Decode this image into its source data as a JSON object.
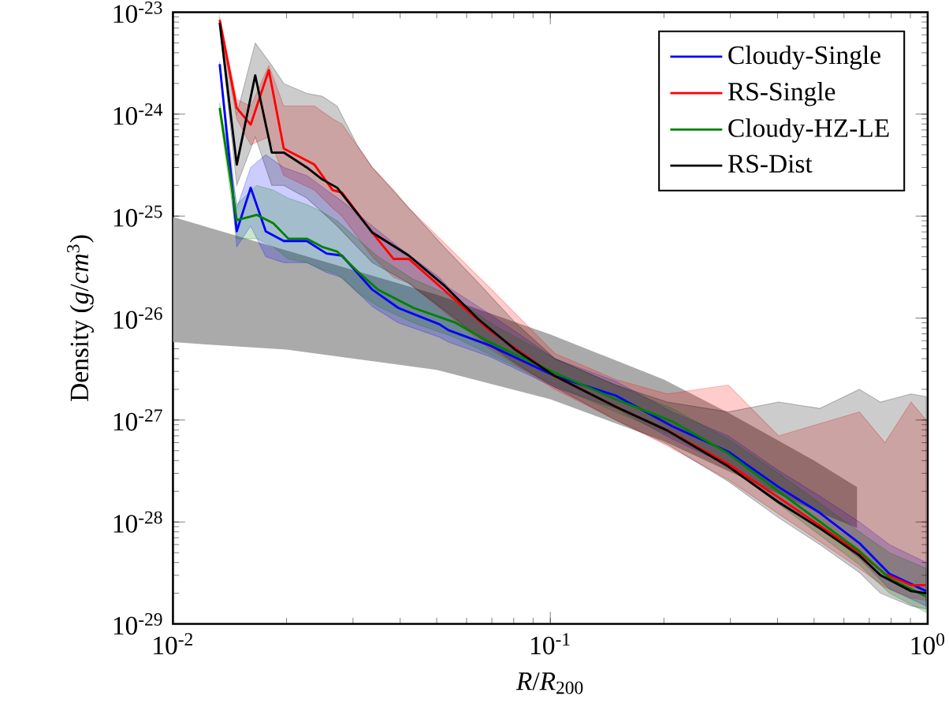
{
  "chart_data": {
    "type": "line",
    "xlabel": "*R*/*R*$_{200}$",
    "ylabel": "Density (*g*/*cm*$^{3}$)",
    "log": "xy",
    "xlim": [
      0.01,
      1
    ],
    "ylim": [
      1e-29,
      1e-23
    ],
    "xticks": [
      {
        "value": 0.01,
        "label": "10$^{-2}$"
      },
      {
        "value": 0.1,
        "label": "10$^{-1}$"
      },
      {
        "value": 1,
        "label": "10$^{0}$"
      }
    ],
    "yticks": [
      {
        "value": 1e-29,
        "label": "10$^{-29}$"
      },
      {
        "value": 1e-28,
        "label": "10$^{-28}$"
      },
      {
        "value": 1e-27,
        "label": "10$^{-27}$"
      },
      {
        "value": 1e-26,
        "label": "10$^{-26}$"
      },
      {
        "value": 1e-25,
        "label": "10$^{-25}$"
      },
      {
        "value": 1e-24,
        "label": "10$^{-24}$"
      },
      {
        "value": 1e-23,
        "label": "10$^{-23}$"
      }
    ],
    "legend": "top right",
    "series": [
      {
        "type": "area",
        "color": "#aaaaaa",
        "x": [
          0.01,
          0.02,
          0.05,
          0.1,
          0.2,
          0.3,
          0.5,
          0.65
        ],
        "values": [
          null,
          null,
          null,
          null,
          null,
          null,
          null,
          null
        ],
        "upper": [
          9.8e-26,
          4.6e-26,
          1.7e-26,
          6.9e-27,
          2.5e-27,
          1.15e-27,
          4e-28,
          2.2e-28
        ],
        "lower": [
          5.8e-27,
          4.9e-27,
          3.1e-27,
          1.6e-27,
          6.2e-28,
          3.1e-28,
          1.3e-28,
          8.7e-29
        ]
      },
      {
        "name": "Cloudy-Single",
        "color": "#0000ff",
        "x": [
          0.0133,
          0.01476,
          0.01607,
          0.01762,
          0.01967,
          0.02263,
          0.02553,
          0.02805,
          0.03375,
          0.03953,
          0.05082,
          0.05373,
          0.069,
          0.1028,
          0.149,
          0.2104,
          0.2963,
          0.4027,
          0.5176,
          0.6592,
          0.7925,
          0.9908
        ],
        "values": [
          3.1e-24,
          7.1e-26,
          1.9e-25,
          7.1e-26,
          5.7e-26,
          5.7e-26,
          4.3e-26,
          4.1e-26,
          1.9e-26,
          1.26e-26,
          8.7e-27,
          7.6e-27,
          5.4e-27,
          2.7e-27,
          1.74e-27,
          8.7e-28,
          4.9e-28,
          2.2e-28,
          1.23e-28,
          6.2e-29,
          3.1e-29,
          2.1e-29
        ],
        "upper": [
          3.3e-24,
          1.2e-25,
          3e-25,
          4e-25,
          3e-25,
          2.5e-25,
          1.8e-25,
          1.4e-25,
          8e-26,
          5e-26,
          2.5e-26,
          2e-26,
          1.1e-26,
          4e-27,
          2.4e-27,
          1.2e-27,
          7e-28,
          3.2e-28,
          1.8e-28,
          1e-28,
          6e-29,
          4e-29
        ],
        "lower": [
          2.9e-24,
          5e-26,
          8e-26,
          4e-26,
          3.5e-26,
          3.5e-26,
          2.8e-26,
          2.5e-26,
          1.3e-26,
          9e-27,
          6.5e-27,
          5.8e-27,
          4.2e-27,
          2.1e-27,
          1.3e-27,
          6.5e-28,
          3.6e-28,
          1.6e-28,
          9e-29,
          4.4e-29,
          2.2e-29,
          1.5e-29
        ]
      },
      {
        "name": "RS-Single",
        "color": "#ff0000",
        "x": [
          0.0133,
          0.01476,
          0.01607,
          0.01795,
          0.01967,
          0.02371,
          0.02649,
          0.02805,
          0.03375,
          0.03846,
          0.04217,
          0.069,
          0.1028,
          0.149,
          0.2042,
          0.2963,
          0.4027,
          0.6592,
          0.7706,
          0.9036,
          0.9908
        ],
        "values": [
          8.4e-24,
          1.15e-24,
          7.9e-25,
          2.7e-24,
          4.6e-25,
          3.2e-25,
          1.8e-25,
          1.7e-25,
          6.9e-26,
          3.8e-26,
          3.8e-26,
          7.6e-27,
          2.7e-27,
          1.35e-27,
          7.9e-28,
          3.7e-28,
          1.74e-28,
          5e-29,
          3.1e-29,
          2.4e-29,
          2.4e-29
        ],
        "upper": [
          9e-24,
          1.4e-24,
          1.2e-24,
          3e-24,
          1.2e-24,
          1.2e-24,
          9e-25,
          8e-25,
          3e-25,
          1.8e-25,
          1.2e-25,
          2e-26,
          4.5e-27,
          2.5e-27,
          1.8e-27,
          2.2e-27,
          7e-28,
          1.2e-27,
          6e-28,
          1.5e-27,
          1e-27
        ],
        "lower": [
          7.5e-24,
          9e-25,
          5e-25,
          6e-25,
          2.5e-25,
          1.8e-25,
          1.2e-25,
          1e-25,
          4e-26,
          2.5e-26,
          2.2e-26,
          5e-27,
          2e-27,
          1e-27,
          5.6e-28,
          2.6e-28,
          1.2e-28,
          3.5e-29,
          2.3e-29,
          1.8e-29,
          1.7e-29
        ]
      },
      {
        "name": "Cloudy-HZ-LE",
        "color": "#008000",
        "x": [
          0.0133,
          0.01476,
          0.01667,
          0.01845,
          0.02023,
          0.02263,
          0.02483,
          0.02723,
          0.03076,
          0.03497,
          0.04335,
          0.05572,
          0.069,
          0.1028,
          0.149,
          0.2104,
          0.2963,
          0.4027,
          0.6592,
          0.7925,
          0.9908
        ],
        "values": [
          1.15e-24,
          9.1e-26,
          1.03e-25,
          8.5e-26,
          6e-26,
          6e-26,
          5e-26,
          4.5e-26,
          2.9e-26,
          1.9e-26,
          1.26e-26,
          9.1e-27,
          5.8e-27,
          2.9e-27,
          1.6e-27,
          9.7e-28,
          4.7e-28,
          2e-28,
          5.2e-29,
          2.8e-29,
          1.86e-29
        ],
        "upper": [
          1.3e-24,
          1.3e-25,
          2e-25,
          1.8e-25,
          1.5e-25,
          1.3e-25,
          1.1e-25,
          9e-26,
          6e-26,
          4e-26,
          2.4e-26,
          1.6e-26,
          9e-27,
          4e-27,
          2.2e-27,
          1.3e-27,
          6.5e-28,
          3e-28,
          8e-29,
          5e-29,
          3.5e-29
        ],
        "lower": [
          1e-24,
          6e-26,
          6e-26,
          5e-26,
          3.8e-26,
          3.5e-26,
          3e-26,
          2.7e-26,
          1.8e-26,
          1.3e-26,
          9e-27,
          6.5e-27,
          4.4e-27,
          2.2e-27,
          1.2e-27,
          7e-28,
          3.5e-28,
          1.5e-28,
          3.8e-29,
          2e-29,
          1.3e-29
        ]
      },
      {
        "name": "RS-Dist",
        "color": "#000000",
        "x": [
          0.0133,
          0.01476,
          0.01652,
          0.01828,
          0.01967,
          0.02263,
          0.02483,
          0.02723,
          0.03076,
          0.03375,
          0.04217,
          0.05224,
          0.06457,
          0.08072,
          0.1028,
          0.149,
          0.2042,
          0.2963,
          0.4027,
          0.5176,
          0.6592,
          0.75,
          0.9036,
          0.9908
        ],
        "values": [
          7.9e-24,
          3.2e-25,
          2.4e-24,
          4.2e-25,
          4.2e-25,
          3e-25,
          2.3e-25,
          1.9e-25,
          1.07e-25,
          6.9e-26,
          4.1e-26,
          2.1e-26,
          9.7e-27,
          4.9e-27,
          2.7e-27,
          1.35e-27,
          7.9e-28,
          3.5e-28,
          1.56e-28,
          8.7e-29,
          4.7e-29,
          3e-29,
          2.1e-29,
          2e-29
        ],
        "upper": [
          8.5e-24,
          1e-24,
          5e-24,
          3e-24,
          2e-24,
          1.6e-24,
          1.5e-24,
          1.2e-24,
          5e-25,
          3e-25,
          1.2e-25,
          5e-26,
          2.2e-26,
          9e-27,
          4e-27,
          2.2e-27,
          1.5e-27,
          1.2e-27,
          1.5e-27,
          1.3e-27,
          2e-27,
          1.5e-27,
          1.8e-27,
          1.7e-27
        ],
        "lower": [
          7e-24,
          2e-25,
          6e-25,
          2e-25,
          2e-25,
          1.5e-25,
          1.1e-25,
          8e-26,
          5e-26,
          3.5e-26,
          2.2e-26,
          1.2e-26,
          6.5e-27,
          3.6e-27,
          2.1e-27,
          1e-27,
          5.8e-28,
          2.5e-28,
          1.1e-28,
          6e-29,
          3.2e-29,
          2e-29,
          1.5e-29,
          1.4e-29
        ]
      }
    ]
  }
}
